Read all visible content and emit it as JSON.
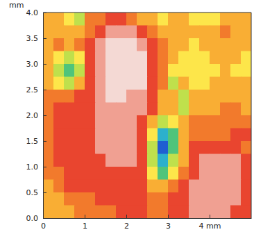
{
  "chart_data": {
    "type": "heatmap",
    "y_label": "mm",
    "xlim": [
      0,
      5
    ],
    "ylim": [
      0,
      4
    ],
    "xticks": [
      0,
      1,
      2,
      3,
      {
        "value": 4,
        "label": "4 mm"
      }
    ],
    "yticks": [
      {
        "value": 0,
        "label": "0.0"
      },
      0.5,
      {
        "value": 1,
        "label": "1.0"
      },
      1.5,
      {
        "value": 2,
        "label": "2.0"
      },
      2.5,
      {
        "value": 3,
        "label": "3.0"
      },
      3.5,
      {
        "value": 4,
        "label": "4.0"
      }
    ],
    "zlim": [
      0,
      9
    ],
    "cells": [
      [
        4,
        4,
        5,
        6,
        3,
        3,
        2,
        2,
        3,
        4,
        4,
        5,
        4,
        4,
        5,
        5,
        5,
        4,
        4,
        4
      ],
      [
        4,
        4,
        4,
        4,
        3,
        2,
        1,
        1,
        1,
        2,
        3,
        4,
        4,
        4,
        4,
        4,
        4,
        3,
        4,
        4
      ],
      [
        4,
        3,
        4,
        3,
        2,
        1,
        0,
        0,
        0,
        1,
        2,
        3,
        4,
        4,
        5,
        4,
        4,
        4,
        4,
        4
      ],
      [
        4,
        5,
        6,
        5,
        2,
        1,
        0,
        0,
        0,
        0,
        2,
        3,
        4,
        5,
        5,
        5,
        4,
        4,
        4,
        5
      ],
      [
        4,
        6,
        7,
        6,
        2,
        1,
        0,
        0,
        0,
        0,
        2,
        3,
        5,
        5,
        5,
        5,
        5,
        4,
        5,
        5
      ],
      [
        4,
        5,
        6,
        4,
        2,
        1,
        0,
        0,
        0,
        0,
        2,
        3,
        6,
        4,
        5,
        5,
        4,
        4,
        4,
        4
      ],
      [
        3,
        3,
        3,
        2,
        2,
        1,
        0,
        0,
        1,
        1,
        2,
        4,
        4,
        6,
        4,
        4,
        4,
        4,
        4,
        4
      ],
      [
        3,
        2,
        2,
        2,
        2,
        1,
        1,
        1,
        1,
        1,
        2,
        4,
        4,
        6,
        4,
        4,
        4,
        3,
        3,
        4
      ],
      [
        3,
        2,
        2,
        2,
        2,
        1,
        1,
        1,
        1,
        2,
        4,
        6,
        5,
        4,
        3,
        3,
        3,
        3,
        3,
        3
      ],
      [
        3,
        2,
        2,
        2,
        2,
        1,
        1,
        1,
        1,
        2,
        5,
        8,
        7,
        4,
        3,
        3,
        3,
        3,
        2,
        2
      ],
      [
        3,
        2,
        2,
        2,
        2,
        1,
        1,
        1,
        1,
        2,
        6,
        9,
        7,
        4,
        2,
        2,
        2,
        2,
        2,
        3
      ],
      [
        3,
        2,
        2,
        2,
        2,
        2,
        1,
        1,
        1,
        2,
        6,
        8,
        6,
        4,
        2,
        1,
        1,
        1,
        1,
        2
      ],
      [
        3,
        3,
        2,
        2,
        2,
        2,
        2,
        2,
        2,
        2,
        5,
        7,
        5,
        3,
        2,
        1,
        1,
        1,
        1,
        2
      ],
      [
        4,
        3,
        2,
        2,
        2,
        2,
        2,
        2,
        2,
        2,
        4,
        4,
        3,
        2,
        1,
        1,
        1,
        1,
        1,
        2
      ],
      [
        4,
        4,
        3,
        3,
        3,
        2,
        2,
        2,
        2,
        2,
        3,
        3,
        2,
        2,
        1,
        1,
        1,
        1,
        1,
        2
      ],
      [
        4,
        4,
        4,
        3,
        3,
        3,
        3,
        2,
        2,
        2,
        3,
        3,
        2,
        2,
        1,
        1,
        1,
        1,
        2,
        2
      ]
    ]
  }
}
